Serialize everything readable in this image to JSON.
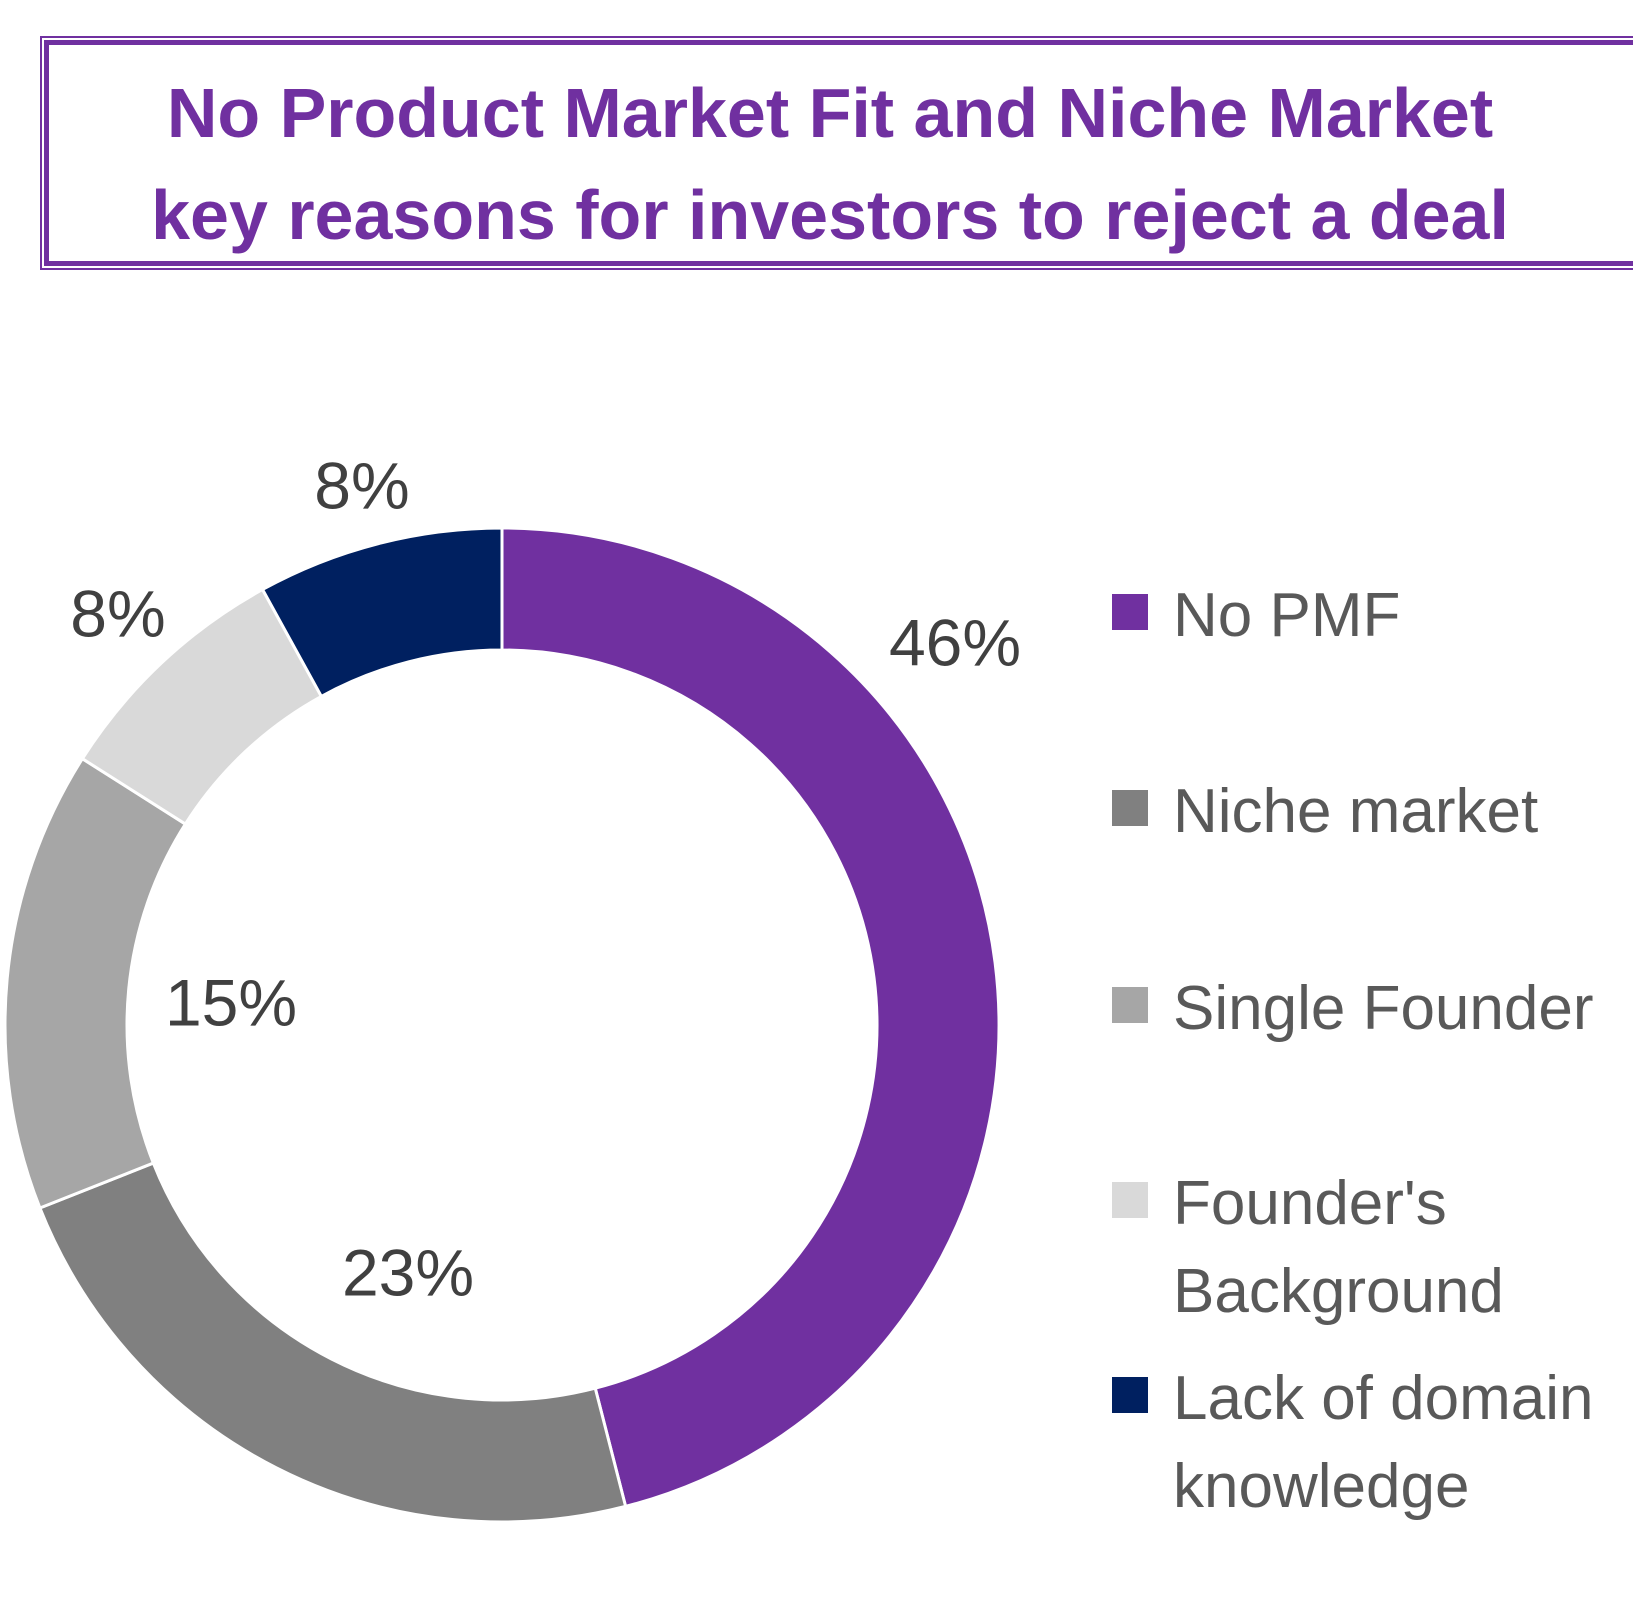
{
  "chart_data": {
    "type": "donut",
    "title": "No Product Market Fit and Niche Market key reasons for investors to reject a deal",
    "categories": [
      "No PMF",
      "Niche market",
      "Single Founder",
      "Founder's Background",
      "Lack of domain knowledge"
    ],
    "values": [
      46,
      23,
      15,
      8,
      8
    ],
    "value_labels": [
      "46%",
      "23%",
      "15%",
      "8%",
      "8%"
    ],
    "colors": [
      "#7030a0",
      "#808080",
      "#a6a6a6",
      "#d9d9d9",
      "#002060"
    ],
    "legend": "right"
  }
}
